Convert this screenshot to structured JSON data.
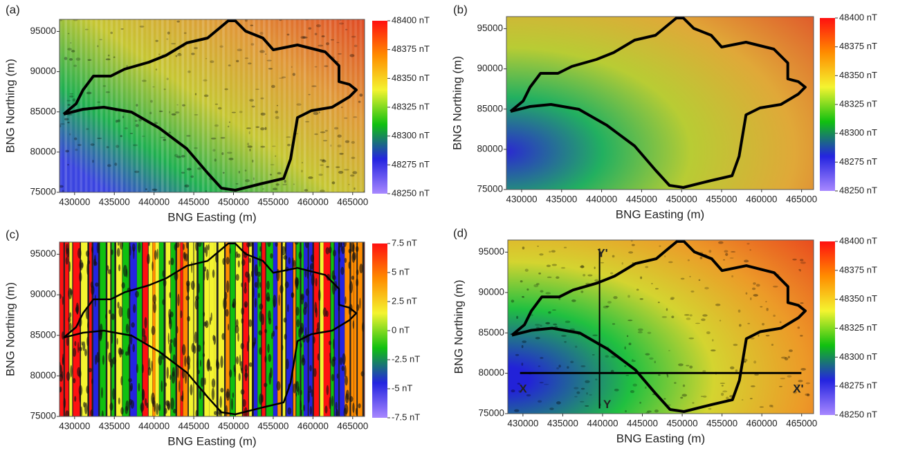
{
  "chart_data": [
    {
      "type": "heatmap",
      "label": "(a)",
      "xlabel": "BNG Easting (m)",
      "ylabel": "BNG Northing (m)",
      "xlim": [
        428100,
        466500
      ],
      "xticks": [
        430000,
        435000,
        440000,
        445000,
        450000,
        455000,
        460000,
        465000
      ],
      "ylim": [
        75000,
        96500
      ],
      "yticks": [
        75000,
        80000,
        85000,
        90000,
        95000
      ],
      "colorbar": {
        "lim": [
          48250,
          48400
        ],
        "colors": [
          "#a888ff",
          "#2424e0",
          "#10c010",
          "#f4f430",
          "#ff8c00",
          "#ff1010"
        ],
        "ticks": [
          {
            "value": 48250,
            "label": "48250 nT"
          },
          {
            "value": 48275,
            "label": "48275 nT"
          },
          {
            "value": 48300,
            "label": "48300 nT"
          },
          {
            "value": 48325,
            "label": "48325 nT"
          },
          {
            "value": 48350,
            "label": "48350 nT"
          },
          {
            "value": 48375,
            "label": "48375 nT"
          },
          {
            "value": 48400,
            "label": "48400 nT"
          }
        ]
      }
    },
    {
      "type": "heatmap",
      "label": "(b)",
      "xlabel": "BNG Easting (m)",
      "ylabel": "BNG Northing (m)",
      "xlim": [
        428100,
        466500
      ],
      "xticks": [
        430000,
        435000,
        440000,
        445000,
        450000,
        455000,
        460000,
        465000
      ],
      "ylim": [
        75000,
        96500
      ],
      "yticks": [
        75000,
        80000,
        85000,
        90000,
        95000
      ],
      "colorbar": {
        "lim": [
          48250,
          48400
        ],
        "colors": [
          "#a888ff",
          "#2424e0",
          "#10c010",
          "#f4f430",
          "#ff8c00",
          "#ff1010"
        ],
        "ticks": [
          {
            "value": 48250,
            "label": "48250 nT"
          },
          {
            "value": 48275,
            "label": "48275 nT"
          },
          {
            "value": 48300,
            "label": "48300 nT"
          },
          {
            "value": 48325,
            "label": "48325 nT"
          },
          {
            "value": 48350,
            "label": "48350 nT"
          },
          {
            "value": 48375,
            "label": "48375 nT"
          },
          {
            "value": 48400,
            "label": "48400 nT"
          }
        ]
      }
    },
    {
      "type": "heatmap",
      "label": "(c)",
      "xlabel": "BNG Easting (m)",
      "ylabel": "BNG Northing (m)",
      "xlim": [
        428100,
        466500
      ],
      "xticks": [
        430000,
        435000,
        440000,
        445000,
        450000,
        455000,
        460000,
        465000
      ],
      "ylim": [
        75000,
        96500
      ],
      "yticks": [
        75000,
        80000,
        85000,
        90000,
        95000
      ],
      "colorbar": {
        "lim": [
          -7.5,
          7.5
        ],
        "colors": [
          "#a888ff",
          "#2424e0",
          "#10c010",
          "#f4f430",
          "#ff8c00",
          "#ff1010"
        ],
        "ticks": [
          {
            "value": -7.5,
            "label": "-7.5 nT"
          },
          {
            "value": -5,
            "label": "-5 nT"
          },
          {
            "value": -2.5,
            "label": "-2.5 nT"
          },
          {
            "value": 0,
            "label": "0 nT"
          },
          {
            "value": 2.5,
            "label": "2.5 nT"
          },
          {
            "value": 5,
            "label": "5 nT"
          },
          {
            "value": 7.5,
            "label": "7.5 nT"
          }
        ]
      }
    },
    {
      "type": "heatmap",
      "label": "(d)",
      "xlabel": "BNG Easting (m)",
      "ylabel": "BNG Northing (m)",
      "xlim": [
        428100,
        466500
      ],
      "xticks": [
        430000,
        435000,
        440000,
        445000,
        450000,
        455000,
        460000,
        465000
      ],
      "ylim": [
        75000,
        96500
      ],
      "yticks": [
        75000,
        80000,
        85000,
        90000,
        95000
      ],
      "annotations": [
        "Y'",
        "Y",
        "X",
        "X'"
      ],
      "colorbar": {
        "lim": [
          48250,
          48400
        ],
        "colors": [
          "#a888ff",
          "#2424e0",
          "#10c010",
          "#f4f430",
          "#ff8c00",
          "#ff1010"
        ],
        "ticks": [
          {
            "value": 48250,
            "label": "48250 nT"
          },
          {
            "value": 48275,
            "label": "48275 nT"
          },
          {
            "value": 48300,
            "label": "48300 nT"
          },
          {
            "value": 48325,
            "label": "48325 nT"
          },
          {
            "value": 48350,
            "label": "48350 nT"
          },
          {
            "value": 48375,
            "label": "48375 nT"
          },
          {
            "value": 48400,
            "label": "48400 nT"
          }
        ]
      }
    }
  ]
}
